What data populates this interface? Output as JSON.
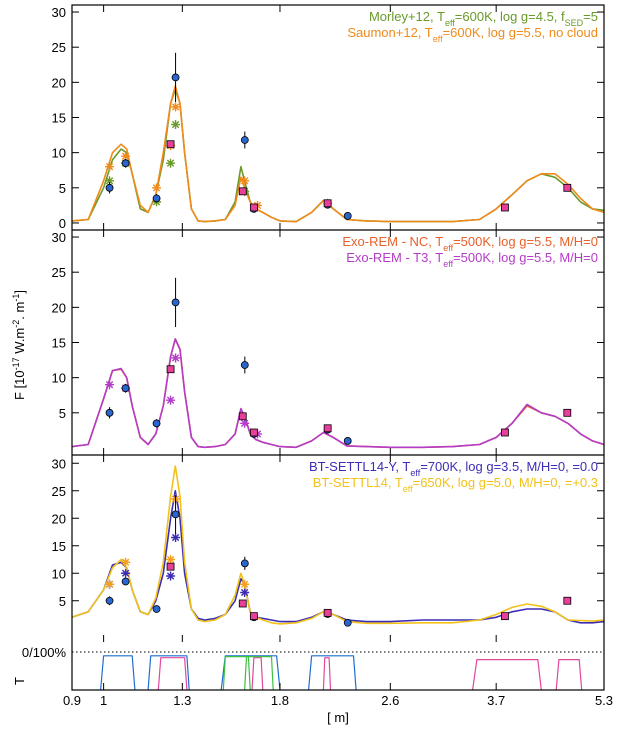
{
  "chart_data": [
    {
      "type": "line",
      "xscale": "log",
      "xlim": [
        0.9,
        5.3
      ],
      "ylim": [
        -1,
        31
      ],
      "yticks": [
        0,
        5,
        10,
        15,
        20,
        25,
        30
      ],
      "legend": "upper right",
      "x": [
        0.9,
        0.95,
        1.0,
        1.03,
        1.06,
        1.08,
        1.1,
        1.13,
        1.16,
        1.19,
        1.22,
        1.25,
        1.27,
        1.29,
        1.31,
        1.34,
        1.37,
        1.4,
        1.45,
        1.5,
        1.55,
        1.58,
        1.6,
        1.63,
        1.66,
        1.7,
        1.75,
        1.8,
        1.9,
        2.0,
        2.08,
        2.15,
        2.25,
        2.4,
        2.6,
        2.9,
        3.2,
        3.5,
        3.7,
        3.9,
        4.1,
        4.3,
        4.5,
        4.7,
        4.9,
        5.1,
        5.3
      ],
      "series": [
        {
          "name": [
            "Morley+12, T",
            "eff",
            "=600K, log g=4.5, f",
            "SED",
            "=5"
          ],
          "color": "#6a9a2a",
          "values": [
            0.3,
            0.5,
            5,
            9,
            10.5,
            10,
            7,
            2,
            1.5,
            4,
            9,
            17,
            19,
            17,
            10,
            2,
            0.3,
            0.2,
            0.3,
            0.5,
            3,
            8,
            6,
            3,
            2,
            1.5,
            0.8,
            0.3,
            0.2,
            1.5,
            3.2,
            2,
            0.5,
            0.3,
            0.2,
            0.2,
            0.2,
            0.5,
            2,
            4,
            6,
            7,
            6.5,
            5,
            3,
            2,
            1.8
          ]
        },
        {
          "name": [
            "Saumon+12, T",
            "eff",
            "=600K, log g=5.5, no cloud"
          ],
          "color": "#f08a1a",
          "values": [
            0.3,
            0.5,
            6,
            10,
            11.2,
            10.5,
            7,
            2.5,
            1.5,
            4,
            10,
            17,
            19.5,
            17,
            10,
            2,
            0.3,
            0.2,
            0.3,
            0.5,
            2.5,
            6.5,
            5,
            3,
            2,
            1.5,
            0.8,
            0.3,
            0.2,
            1.5,
            3.2,
            2,
            0.5,
            0.3,
            0.2,
            0.2,
            0.2,
            0.5,
            2,
            4,
            6,
            7,
            7,
            5.5,
            3.5,
            2,
            1.5
          ]
        },
        {
          "type": "scatter",
          "marker": "asterisk",
          "color": "#6a9a2a",
          "x": [
            1.02,
            1.076,
            1.193,
            1.25,
            1.271,
            1.6
          ],
          "values": [
            6,
            8.5,
            3,
            8.5,
            14,
            4.5
          ]
        },
        {
          "type": "scatter",
          "marker": "asterisk",
          "color": "#f08a1a",
          "x": [
            1.02,
            1.076,
            1.193,
            1.25,
            1.271,
            1.6,
            1.67,
            2.11
          ],
          "values": [
            8,
            9.5,
            5,
            11,
            16.5,
            6,
            2.5,
            2.8
          ]
        },
        {
          "type": "scatter",
          "marker": "circle",
          "color": "#2a66d0",
          "x": [
            1.02,
            1.076,
            1.193,
            1.271,
            1.601,
            1.65,
            2.11,
            2.256
          ],
          "values": [
            5.0,
            8.5,
            3.5,
            20.7,
            11.8,
            2.0,
            2.6,
            1.0
          ],
          "errors": [
            0.8,
            0.6,
            0.6,
            3.5,
            1.2,
            0.4,
            0.4,
            0.3
          ]
        },
        {
          "type": "scatter",
          "marker": "square",
          "color": "#e8409a",
          "x": [
            1.25,
            1.59,
            1.65,
            2.11,
            3.81,
            4.69
          ],
          "values": [
            11.2,
            4.5,
            2.2,
            2.8,
            2.2,
            5.0
          ]
        }
      ]
    },
    {
      "type": "line",
      "xscale": "log",
      "xlim": [
        0.9,
        5.3
      ],
      "ylim": [
        -1,
        31
      ],
      "yticks": [
        5,
        10,
        15,
        20,
        25,
        30
      ],
      "legend": "upper right",
      "x": [
        0.9,
        0.95,
        1.0,
        1.03,
        1.06,
        1.08,
        1.1,
        1.13,
        1.16,
        1.19,
        1.22,
        1.25,
        1.27,
        1.29,
        1.31,
        1.34,
        1.37,
        1.4,
        1.45,
        1.5,
        1.55,
        1.58,
        1.6,
        1.63,
        1.66,
        1.7,
        1.75,
        1.8,
        1.9,
        2.0,
        2.08,
        2.15,
        2.25,
        2.4,
        2.6,
        2.9,
        3.2,
        3.5,
        3.7,
        3.9,
        4.1,
        4.3,
        4.5,
        4.7,
        4.9,
        5.1,
        5.3
      ],
      "series": [
        {
          "name": [
            "Exo-REM - NC, T",
            "eff",
            "=500K, log g=5.5, M/H=0"
          ],
          "color": "#e8602a",
          "values": [
            0.2,
            0.5,
            7,
            11,
            11.2,
            10,
            6,
            1.5,
            0.5,
            2,
            6,
            13,
            15.5,
            14,
            8,
            1.5,
            0.2,
            0.1,
            0.2,
            0.5,
            2,
            5.5,
            4.5,
            2,
            1.2,
            0.8,
            0.5,
            0.2,
            0.1,
            1,
            2.2,
            1.5,
            0.3,
            0.2,
            0.1,
            0.1,
            0.2,
            0.5,
            1.5,
            3.5,
            6,
            5,
            4.5,
            3.5,
            2,
            1,
            0.5
          ]
        },
        {
          "name": [
            "Exo-REM - T3, T",
            "eff",
            "=500K, log g=5.5, M/H=0"
          ],
          "color": "#b43cc8",
          "values": [
            0.2,
            0.5,
            7,
            11,
            11.3,
            10,
            6,
            1.5,
            0.5,
            2,
            6,
            13,
            15.5,
            14,
            8,
            1.5,
            0.2,
            0.1,
            0.2,
            0.5,
            2,
            5.6,
            4.5,
            2,
            1.2,
            0.8,
            0.5,
            0.2,
            0.1,
            1,
            2.2,
            1.5,
            0.3,
            0.2,
            0.1,
            0.1,
            0.2,
            0.5,
            1.5,
            3.5,
            6.2,
            5,
            4.5,
            3.5,
            2,
            1,
            0.5
          ]
        },
        {
          "type": "scatter",
          "marker": "asterisk",
          "color": "#b43cc8",
          "x": [
            1.02,
            1.076,
            1.25,
            1.271,
            1.6,
            1.67
          ],
          "values": [
            9,
            8.5,
            6.8,
            12.8,
            3.5,
            2
          ]
        },
        {
          "type": "scatter",
          "marker": "circle",
          "color": "#2a66d0",
          "x": [
            1.02,
            1.076,
            1.193,
            1.271,
            1.601,
            1.65,
            2.11,
            2.256
          ],
          "values": [
            5.0,
            8.5,
            3.5,
            20.7,
            11.8,
            2.0,
            2.6,
            1.0
          ],
          "errors": [
            0.8,
            0.6,
            0.6,
            3.5,
            1.2,
            0.4,
            0.4,
            0.3
          ]
        },
        {
          "type": "scatter",
          "marker": "square",
          "color": "#e8409a",
          "x": [
            1.25,
            1.59,
            1.65,
            2.11,
            3.81,
            4.69
          ],
          "values": [
            11.2,
            4.5,
            2.2,
            2.8,
            2.2,
            5.0
          ]
        }
      ]
    },
    {
      "type": "line",
      "xscale": "log",
      "xlim": [
        0.9,
        5.3
      ],
      "ylim": [
        -2.5,
        31.5
      ],
      "yticks": [
        5,
        10,
        15,
        20,
        25,
        30
      ],
      "legend": "upper right",
      "x": [
        0.9,
        0.95,
        1.0,
        1.03,
        1.06,
        1.08,
        1.1,
        1.13,
        1.16,
        1.19,
        1.22,
        1.25,
        1.27,
        1.29,
        1.31,
        1.34,
        1.37,
        1.4,
        1.45,
        1.5,
        1.55,
        1.58,
        1.6,
        1.63,
        1.66,
        1.7,
        1.75,
        1.8,
        1.9,
        2.0,
        2.08,
        2.15,
        2.25,
        2.4,
        2.6,
        2.9,
        3.2,
        3.5,
        3.7,
        3.9,
        4.1,
        4.3,
        4.5,
        4.7,
        4.9,
        5.1,
        5.3
      ],
      "series": [
        {
          "name": [
            "BT-SETTL14-Y, T",
            "eff",
            "=700K, log g=3.5, M/H=0,    =0.0"
          ],
          "color": "#3d2db5",
          "values": [
            2,
            3,
            7,
            11.5,
            12,
            11,
            7,
            3,
            2.5,
            5,
            10,
            20,
            25,
            20,
            10,
            3.5,
            1.8,
            1.5,
            1.8,
            2.5,
            5,
            9,
            8,
            3,
            2,
            1.8,
            1.5,
            1.2,
            1.2,
            2,
            3,
            2.5,
            1.5,
            1.2,
            1.2,
            1.5,
            1.5,
            1.5,
            2,
            3,
            3.5,
            3.5,
            3,
            1.5,
            1,
            1,
            1.2
          ]
        },
        {
          "name": [
            "BT-SETTL14, T",
            "eff",
            "=650K, log g=5.0, M/H=0,    =+0.3"
          ],
          "color": "#f2c21b",
          "values": [
            2,
            3,
            7,
            11,
            12.5,
            11,
            7,
            3,
            2.5,
            5.5,
            12,
            24,
            29.5,
            24,
            12,
            3.5,
            1.5,
            1.2,
            1.5,
            2.5,
            6,
            10,
            8,
            3,
            2,
            1.5,
            1,
            0.8,
            1,
            1.8,
            3,
            2.5,
            1.2,
            0.9,
            0.9,
            1,
            1,
            1.5,
            2.5,
            3.8,
            4.4,
            4,
            3,
            1.5,
            1.4,
            1.3,
            1.5
          ]
        },
        {
          "type": "scatter",
          "marker": "asterisk",
          "color": "#3d2db5",
          "x": [
            1.02,
            1.076,
            1.25,
            1.271,
            1.6
          ],
          "values": [
            8,
            10,
            9.5,
            16.5,
            6.5
          ]
        },
        {
          "type": "scatter",
          "marker": "asterisk",
          "color": "#f2a01b",
          "x": [
            1.02,
            1.076,
            1.25,
            1.271,
            1.6
          ],
          "values": [
            8,
            12,
            12.5,
            23.5,
            8
          ]
        },
        {
          "type": "scatter",
          "marker": "circle",
          "color": "#2a66d0",
          "x": [
            1.02,
            1.076,
            1.193,
            1.271,
            1.601,
            1.65,
            2.11,
            2.256
          ],
          "values": [
            5.0,
            8.5,
            3.5,
            20.7,
            11.8,
            2.0,
            2.6,
            1.0
          ],
          "errors": [
            0.8,
            0.6,
            0.6,
            3.5,
            1.2,
            0.4,
            0.4,
            0.3
          ]
        },
        {
          "type": "scatter",
          "marker": "square",
          "color": "#e8409a",
          "x": [
            1.25,
            1.59,
            1.65,
            2.11,
            3.81,
            4.69
          ],
          "values": [
            11.2,
            4.5,
            2.2,
            2.8,
            2.2,
            5.0
          ]
        }
      ]
    },
    {
      "type": "transmission",
      "xscale": "log",
      "xlim": [
        0.9,
        5.3
      ],
      "ylim": [
        0,
        100
      ],
      "ylabel": "T",
      "yticks": [
        {
          "value": 100,
          "label": "0/100%"
        }
      ],
      "grid": true,
      "xticks": [
        0.9,
        1,
        1.3,
        1.8,
        2.6,
        3.7,
        5.3
      ],
      "xlabel": "[ m]",
      "series": [
        {
          "color": "#1f6fd0",
          "x": [
            0.99,
            1.0,
            1.1,
            1.11,
            1.12,
            1.16,
            1.17,
            1.32,
            1.33,
            1.4,
            1.48,
            1.5,
            1.78,
            1.8,
            1.9,
            1.98,
            2.0,
            2.3,
            2.32
          ],
          "values": [
            0,
            90,
            90,
            0,
            null,
            0,
            90,
            90,
            0,
            null,
            0,
            90,
            90,
            0,
            null,
            0,
            90,
            90,
            0
          ]
        },
        {
          "color": "#e0479e",
          "x": [
            1.2,
            1.21,
            1.31,
            1.32,
            1.4,
            1.64,
            1.65,
            1.69,
            1.7,
            1.9,
            2.08,
            2.09,
            2.12,
            2.13,
            2.5,
            3.42,
            3.47,
            4.25,
            4.3,
            4.4,
            4.52,
            4.56,
            4.88,
            4.92
          ],
          "values": [
            0,
            85,
            85,
            0,
            null,
            0,
            85,
            85,
            0,
            null,
            0,
            85,
            85,
            0,
            null,
            0,
            80,
            80,
            0,
            null,
            0,
            80,
            80,
            0
          ]
        },
        {
          "color": "#3cc040",
          "x": [
            1.49,
            1.5,
            1.62,
            1.63,
            1.64,
            1.6,
            1.61,
            1.75,
            1.76
          ],
          "values": [
            0,
            88,
            88,
            0,
            null,
            0,
            88,
            88,
            0
          ]
        }
      ]
    },
    {
      "ylabel": [
        "F [10",
        "-17",
        " W.m",
        "-2",
        ". m",
        "-1",
        "]"
      ]
    }
  ]
}
